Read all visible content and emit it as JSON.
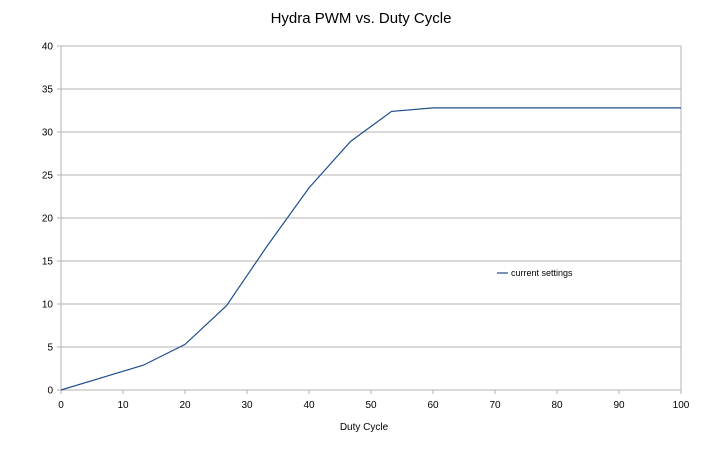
{
  "chart_data": {
    "type": "line",
    "title": "Hydra PWM vs. Duty Cycle",
    "xlabel": "Duty Cycle",
    "ylabel": "",
    "xlim": [
      0,
      100
    ],
    "ylim": [
      0,
      40
    ],
    "x_ticks": [
      "0",
      "10",
      "20",
      "30",
      "40",
      "50",
      "60",
      "70",
      "80",
      "90",
      "100"
    ],
    "y_ticks": [
      "0",
      "5",
      "10",
      "15",
      "20",
      "25",
      "30",
      "35",
      "40"
    ],
    "grid": "horizontal",
    "legend_position": "right",
    "series": [
      {
        "name": "current settings",
        "color": "#1f4e8c",
        "x": [
          0,
          13.3,
          20,
          26.7,
          33.3,
          40,
          46.7,
          53.3,
          60,
          100
        ],
        "y": [
          0,
          2.9,
          5.3,
          9.8,
          16.8,
          23.5,
          28.9,
          32.4,
          32.8,
          32.8
        ]
      }
    ]
  }
}
